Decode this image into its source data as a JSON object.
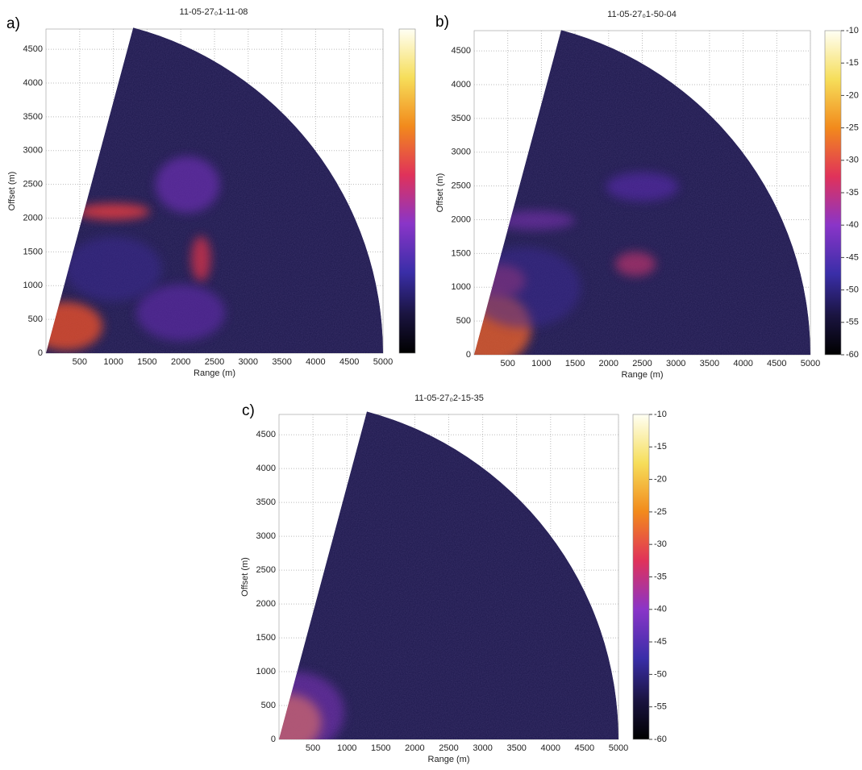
{
  "chart_data": [
    {
      "type": "radar-sector",
      "label": "a)",
      "title": "11-05-27₀1-11-08",
      "xlabel": "Range (m)",
      "ylabel": "Offset (m)",
      "xlim": [
        0,
        5000
      ],
      "xticks": [
        500,
        1000,
        1500,
        2000,
        2500,
        3000,
        3500,
        4000,
        4500,
        5000
      ],
      "ylim": [
        0,
        4800
      ],
      "yticks": [
        0,
        500,
        1000,
        1500,
        2000,
        2500,
        3000,
        3500,
        4000,
        4500
      ],
      "grid": true,
      "colorbar": true
    },
    {
      "type": "radar-sector",
      "label": "b)",
      "title": "11-05-27₀1-50-04",
      "xlabel": "Range (m)",
      "ylabel": "Offset (m)",
      "xlim": [
        0,
        5000
      ],
      "xticks": [
        500,
        1000,
        1500,
        2000,
        2500,
        3000,
        3500,
        4000,
        4500,
        5000
      ],
      "ylim": [
        0,
        4800
      ],
      "yticks": [
        0,
        500,
        1000,
        1500,
        2000,
        2500,
        3000,
        3500,
        4000,
        4500
      ],
      "grid": true,
      "colorbar": {
        "clim": [
          -60,
          -10
        ],
        "ticks": [
          -10,
          -15,
          -20,
          -25,
          -30,
          -35,
          -40,
          -45,
          -50,
          -55,
          -60
        ]
      }
    },
    {
      "type": "radar-sector",
      "label": "c)",
      "title": "11-05-27₀2-15-35",
      "xlabel": "Range (m)",
      "ylabel": "Offset (m)",
      "xlim": [
        0,
        5000
      ],
      "xticks": [
        500,
        1000,
        1500,
        2000,
        2500,
        3000,
        3500,
        4000,
        4500,
        5000
      ],
      "ylim": [
        0,
        4800
      ],
      "yticks": [
        0,
        500,
        1000,
        1500,
        2000,
        2500,
        3000,
        3500,
        4000,
        4500
      ],
      "grid": true,
      "colorbar": {
        "clim": [
          -60,
          -10
        ],
        "ticks": [
          -10,
          -15,
          -20,
          -25,
          -30,
          -35,
          -40,
          -45,
          -50,
          -55,
          -60
        ]
      }
    }
  ]
}
